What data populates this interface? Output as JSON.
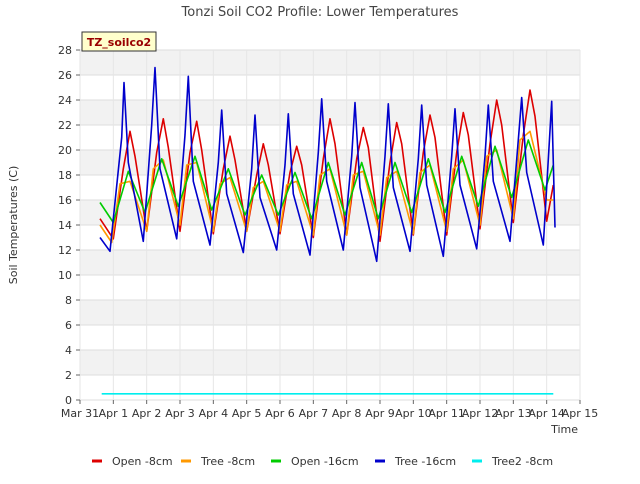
{
  "chart_data": {
    "type": "line",
    "title": "Tonzi Soil CO2 Profile: Lower Temperatures",
    "badge": "TZ_soilco2",
    "xlabel": "Time",
    "ylabel": "Soil Temperatures (C)",
    "ylim": [
      0,
      28
    ],
    "yticks": [
      0,
      2,
      4,
      6,
      8,
      10,
      12,
      14,
      16,
      18,
      20,
      22,
      24,
      26,
      28
    ],
    "xlim": [
      0,
      15
    ],
    "xticks": [
      0,
      1,
      2,
      3,
      4,
      5,
      6,
      7,
      8,
      9,
      10,
      11,
      12,
      13,
      14,
      15
    ],
    "xtick_labels": [
      "Mar 31",
      "Apr 1",
      "Apr 2",
      "Apr 3",
      "Apr 4",
      "Apr 5",
      "Apr 6",
      "Apr 7",
      "Apr 8",
      "Apr 9",
      "Apr 10",
      "Apr 11",
      "Apr 12",
      "Apr 13",
      "Apr 14",
      "Apr 15"
    ],
    "grid": "horizontal bands",
    "legend_position": "bottom",
    "series": [
      {
        "name": "Open -8cm",
        "color": "#dd0000",
        "x": [
          0.6,
          1.0,
          1.3,
          1.5,
          1.65,
          2.0,
          2.3,
          2.5,
          2.65,
          3.0,
          3.3,
          3.5,
          3.65,
          4.0,
          4.3,
          4.5,
          4.65,
          5.0,
          5.3,
          5.5,
          5.65,
          6.0,
          6.3,
          6.5,
          6.65,
          7.0,
          7.3,
          7.5,
          7.65,
          8.0,
          8.3,
          8.5,
          8.65,
          9.0,
          9.3,
          9.5,
          9.65,
          10.0,
          10.3,
          10.5,
          10.65,
          11.0,
          11.3,
          11.5,
          11.65,
          12.0,
          12.3,
          12.5,
          12.65,
          13.0,
          13.3,
          13.5,
          13.65,
          14.0,
          14.2
        ],
        "y": [
          14.5,
          12.9,
          18.5,
          21.5,
          19.5,
          13.5,
          19.8,
          22.5,
          20.2,
          13.5,
          19.8,
          22.3,
          20.0,
          13.3,
          18.5,
          21.1,
          19.2,
          13.5,
          18.0,
          20.5,
          18.8,
          13.3,
          18.2,
          20.3,
          18.8,
          13.0,
          19.3,
          22.5,
          20.5,
          13.2,
          19.3,
          21.8,
          20.2,
          12.7,
          19.0,
          22.2,
          20.5,
          13.2,
          19.8,
          22.8,
          21.0,
          13.2,
          19.8,
          23.0,
          21.2,
          13.7,
          20.5,
          24.0,
          22.0,
          14.2,
          21.2,
          24.8,
          22.7,
          14.3,
          17.2
        ]
      },
      {
        "name": "Tree -8cm",
        "color": "#ff9900",
        "x": [
          0.6,
          0.95,
          1.2,
          1.5,
          2.0,
          2.2,
          2.5,
          3.0,
          3.2,
          3.5,
          4.0,
          4.2,
          4.5,
          5.0,
          5.2,
          5.5,
          6.0,
          6.2,
          6.5,
          7.0,
          7.2,
          7.5,
          8.0,
          8.2,
          8.5,
          9.0,
          9.2,
          9.5,
          10.0,
          10.2,
          10.5,
          11.0,
          11.2,
          11.5,
          12.0,
          12.2,
          12.5,
          13.0,
          13.2,
          13.5,
          14.0,
          14.2
        ],
        "y": [
          14.0,
          12.6,
          17.3,
          17.5,
          13.5,
          18.5,
          19.2,
          14.0,
          18.8,
          19.0,
          13.5,
          17.3,
          17.8,
          13.5,
          17.0,
          17.5,
          13.5,
          17.2,
          17.5,
          13.2,
          18.0,
          18.5,
          13.2,
          18.0,
          18.3,
          13.2,
          17.8,
          18.3,
          13.3,
          18.2,
          18.8,
          13.5,
          18.5,
          19.2,
          14.0,
          19.5,
          20.0,
          14.5,
          20.8,
          21.5,
          16.0,
          16.0
        ]
      },
      {
        "name": "Open -16cm",
        "color": "#00cc00",
        "x": [
          0.6,
          1.0,
          1.45,
          1.95,
          2.45,
          2.95,
          3.45,
          3.95,
          4.45,
          4.95,
          5.45,
          5.95,
          6.45,
          6.95,
          7.45,
          7.95,
          8.45,
          8.95,
          9.45,
          9.95,
          10.45,
          10.95,
          11.45,
          11.95,
          12.45,
          12.95,
          13.45,
          13.95,
          14.2
        ],
        "y": [
          15.8,
          14.2,
          18.3,
          15.0,
          19.3,
          15.5,
          19.5,
          15.2,
          18.5,
          14.8,
          18.0,
          14.8,
          18.2,
          14.5,
          19.0,
          14.8,
          19.0,
          14.5,
          19.0,
          15.0,
          19.3,
          15.0,
          19.5,
          15.5,
          20.3,
          16.2,
          20.8,
          16.8,
          18.8
        ]
      },
      {
        "name": "Tree -16cm",
        "color": "#0000cc",
        "x": [
          0.6,
          0.9,
          1.0,
          1.25,
          1.32,
          1.45,
          1.9,
          2.15,
          2.25,
          2.4,
          2.9,
          3.15,
          3.25,
          3.4,
          3.9,
          4.15,
          4.25,
          4.4,
          4.9,
          5.15,
          5.25,
          5.4,
          5.9,
          6.15,
          6.25,
          6.4,
          6.9,
          7.15,
          7.25,
          7.4,
          7.9,
          8.15,
          8.25,
          8.4,
          8.9,
          9.15,
          9.25,
          9.4,
          9.9,
          10.15,
          10.25,
          10.4,
          10.9,
          11.15,
          11.25,
          11.4,
          11.9,
          12.15,
          12.25,
          12.4,
          12.9,
          13.15,
          13.25,
          13.4,
          13.9,
          14.15,
          14.25
        ],
        "y": [
          13.0,
          11.9,
          14.5,
          21.0,
          25.4,
          19.0,
          12.7,
          22.0,
          26.6,
          18.5,
          12.9,
          21.2,
          25.9,
          17.5,
          12.4,
          19.0,
          23.2,
          16.5,
          11.8,
          18.5,
          22.8,
          16.2,
          12.0,
          18.8,
          22.9,
          16.5,
          11.6,
          19.8,
          24.1,
          17.5,
          12.0,
          19.5,
          23.8,
          17.0,
          11.1,
          19.5,
          23.7,
          17.0,
          11.9,
          19.3,
          23.6,
          17.2,
          11.5,
          19.5,
          23.3,
          17.2,
          12.1,
          19.5,
          23.6,
          17.5,
          12.7,
          20.8,
          24.2,
          18.2,
          12.4,
          23.9,
          13.8
        ]
      },
      {
        "name": "Tree2 -8cm",
        "color": "#00eeee",
        "x": [
          0.65,
          14.2
        ],
        "y": [
          0.5,
          0.5
        ]
      }
    ]
  }
}
